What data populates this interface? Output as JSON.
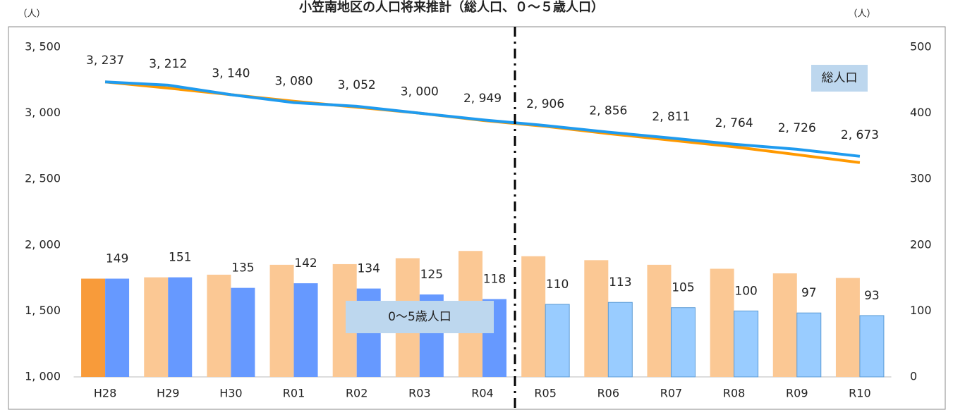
{
  "chart_data": {
    "type": "combo",
    "title": "小笠南地区の人口将来推計（総人口、０～５歳人口）",
    "y_unit": "（人）",
    "y2_unit": "（人）",
    "categories": [
      "H28",
      "H29",
      "H30",
      "R01",
      "R02",
      "R03",
      "R04",
      "R05",
      "R06",
      "R07",
      "R08",
      "R09",
      "R10"
    ],
    "ylim": [
      1000,
      3500
    ],
    "yticks": [
      {
        "value": 1000,
        "label": "1, 000"
      },
      {
        "value": 1500,
        "label": "1, 500"
      },
      {
        "value": 2000,
        "label": "2, 000"
      },
      {
        "value": 2500,
        "label": "2, 500"
      },
      {
        "value": 3000,
        "label": "3, 000"
      },
      {
        "value": 3500,
        "label": "3, 500"
      }
    ],
    "y2lim": [
      0,
      500
    ],
    "y2ticks": [
      0,
      100,
      200,
      300,
      400,
      500
    ],
    "series": [
      {
        "type": "bar",
        "axis": "y2",
        "color": "#fbc894",
        "colors": [
          "#f89b3a",
          "#fbc894",
          "#fbc894",
          "#fbc894",
          "#fbc894",
          "#fbc894",
          "#fbc894",
          "#fbc894",
          "#fbc894",
          "#fbc894",
          "#fbc894",
          "#fbc894",
          "#fbc894"
        ],
        "values": [
          149,
          151,
          155,
          170,
          171,
          180,
          191,
          183,
          177,
          170,
          164,
          157,
          150
        ]
      },
      {
        "type": "bar",
        "axis": "y2",
        "color": "#6699ff",
        "colors": [
          "#6699ff",
          "#6699ff",
          "#6699ff",
          "#6699ff",
          "#6699ff",
          "#6699ff",
          "#6699ff",
          "#99ccff",
          "#99ccff",
          "#99ccff",
          "#99ccff",
          "#99ccff",
          "#99ccff"
        ],
        "values": [
          149,
          151,
          135,
          142,
          134,
          125,
          118,
          110,
          113,
          105,
          100,
          97,
          93
        ],
        "labels": true
      },
      {
        "type": "line",
        "color": "#ff9900",
        "values": [
          3237,
          3190,
          3140,
          3090,
          3045,
          3000,
          2945,
          2900,
          2845,
          2795,
          2745,
          2685,
          2625
        ]
      },
      {
        "type": "line",
        "color": "#1f9bef",
        "values": [
          3237,
          3212,
          3140,
          3080,
          3052,
          3000,
          2949,
          2906,
          2856,
          2811,
          2764,
          2726,
          2673
        ],
        "labels": true,
        "value_labels": [
          "3, 237",
          "3, 212",
          "3, 140",
          "3, 080",
          "3, 052",
          "3, 000",
          "2, 949",
          "2, 906",
          "2, 856",
          "2, 811",
          "2, 764",
          "2, 726",
          "2, 673"
        ]
      }
    ],
    "annotations": [
      "総人口",
      "0～5歳人口"
    ]
  }
}
